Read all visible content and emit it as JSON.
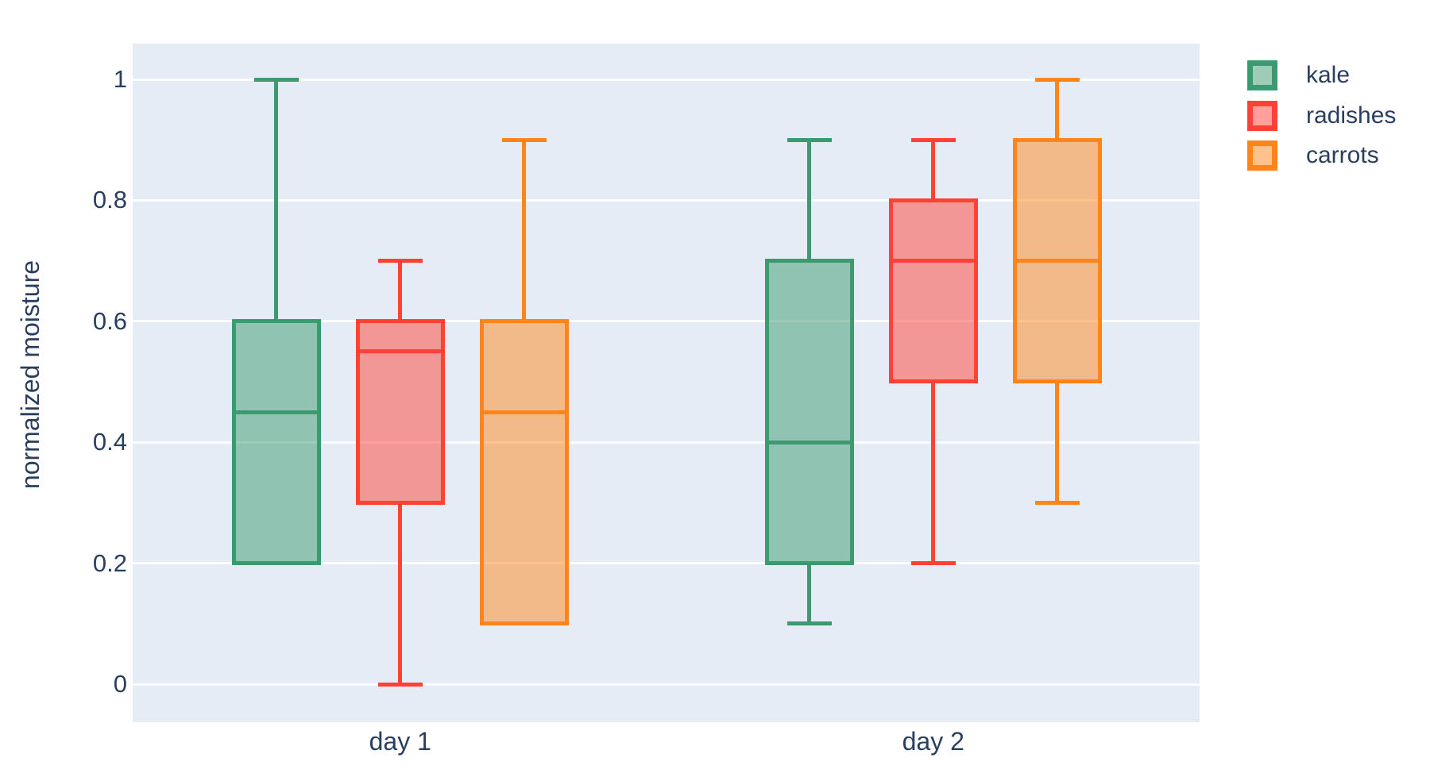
{
  "figure": {
    "background": "#FFFFFF",
    "plot_bgcolor": "#E5ECF6",
    "gridcolor": "#FFFFFF",
    "font_color": "#2A3F5F"
  },
  "chart_data": {
    "type": "box",
    "title": "",
    "xlabel": "",
    "ylabel": "normalized moisture",
    "categories": [
      "day 1",
      "day 2"
    ],
    "series": [
      {
        "name": "kale",
        "color": "#3D9970",
        "boxes": [
          {
            "category": "day 1",
            "min": 0.2,
            "q1": 0.2,
            "median": 0.45,
            "q3": 0.6,
            "max": 1.0
          },
          {
            "category": "day 2",
            "min": 0.1,
            "q1": 0.2,
            "median": 0.4,
            "q3": 0.7,
            "max": 0.9
          }
        ]
      },
      {
        "name": "radishes",
        "color": "#FF4136",
        "boxes": [
          {
            "category": "day 1",
            "min": 0.0,
            "q1": 0.3,
            "median": 0.55,
            "q3": 0.6,
            "max": 0.7
          },
          {
            "category": "day 2",
            "min": 0.2,
            "q1": 0.5,
            "median": 0.7,
            "q3": 0.8,
            "max": 0.9
          }
        ]
      },
      {
        "name": "carrots",
        "color": "#FF851B",
        "boxes": [
          {
            "category": "day 1",
            "min": 0.1,
            "q1": 0.1,
            "median": 0.45,
            "q3": 0.6,
            "max": 0.9
          },
          {
            "category": "day 2",
            "min": 0.3,
            "q1": 0.5,
            "median": 0.7,
            "q3": 0.9,
            "max": 1.0
          }
        ]
      }
    ],
    "yticks": [
      {
        "value": 0,
        "label": "0"
      },
      {
        "value": 0.2,
        "label": "0.2"
      },
      {
        "value": 0.4,
        "label": "0.4"
      },
      {
        "value": 0.6,
        "label": "0.6"
      },
      {
        "value": 0.8,
        "label": "0.8"
      },
      {
        "value": 1,
        "label": "1"
      }
    ],
    "ylim": [
      -0.063,
      1.059
    ],
    "grid": true,
    "legend_position": "top-right",
    "box_fill_opacity": 0.5,
    "boxmode": "group"
  }
}
